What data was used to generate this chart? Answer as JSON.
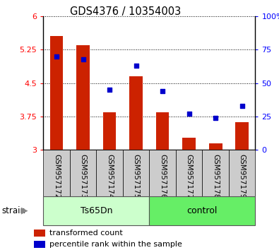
{
  "title": "GDS4376 / 10354003",
  "samples": [
    "GSM957172",
    "GSM957173",
    "GSM957174",
    "GSM957175",
    "GSM957176",
    "GSM957177",
    "GSM957178",
    "GSM957179"
  ],
  "transformed_count": [
    5.55,
    5.35,
    3.85,
    4.65,
    3.85,
    3.28,
    3.15,
    3.63
  ],
  "percentile_rank": [
    70,
    68,
    45,
    63,
    44,
    27,
    24,
    33
  ],
  "bar_baseline": 3.0,
  "ylim_left": [
    3.0,
    6.0
  ],
  "ylim_right": [
    0,
    100
  ],
  "yticks_left": [
    3.0,
    3.75,
    4.5,
    5.25,
    6.0
  ],
  "ytick_labels_left": [
    "3",
    "3.75",
    "4.5",
    "5.25",
    "6"
  ],
  "yticks_right": [
    0,
    25,
    50,
    75,
    100
  ],
  "ytick_labels_right": [
    "0",
    "25",
    "50",
    "75",
    "100%"
  ],
  "bar_color": "#cc2200",
  "dot_color": "#0000cc",
  "ts65dn_label": "Ts65Dn",
  "control_label": "control",
  "strain_label": "strain",
  "ts65dn_color": "#ccffcc",
  "control_color": "#66ee66",
  "xlabel_bg": "#cccccc",
  "bar_width": 0.5,
  "legend_labels": [
    "transformed count",
    "percentile rank within the sample"
  ],
  "legend_colors": [
    "#cc2200",
    "#0000cc"
  ],
  "fig_width": 3.95,
  "fig_height": 3.54,
  "dpi": 100
}
